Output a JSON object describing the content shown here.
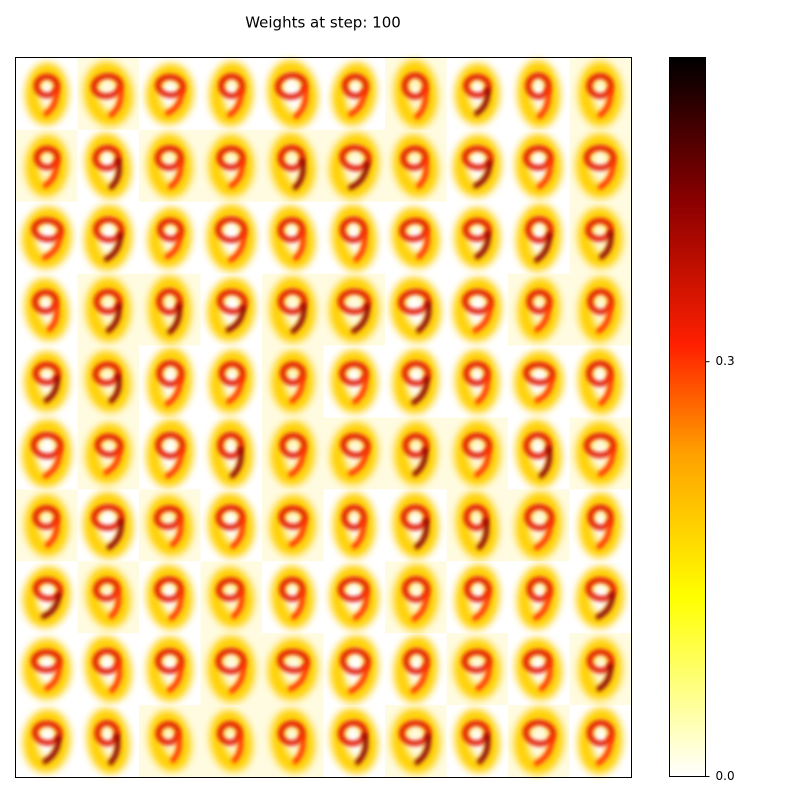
{
  "chart_data": {
    "type": "image",
    "title": "Weights at step: 100",
    "grid_rows": 10,
    "grid_cols": 10,
    "cmap": "hot_r",
    "clim": [
      0,
      0.52
    ],
    "colorbar_ticks": [
      {
        "value": 0,
        "label": "0.0"
      },
      0.3
    ]
  }
}
